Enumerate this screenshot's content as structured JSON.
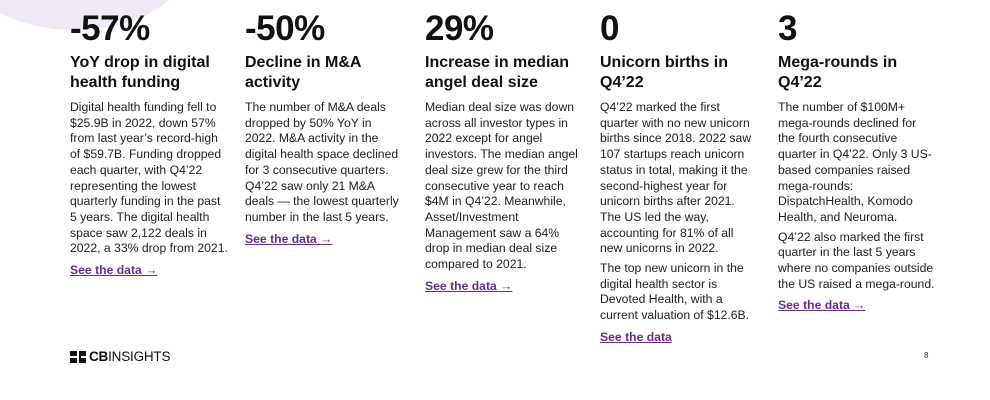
{
  "columns": [
    {
      "stat": "-57%",
      "heading": "YoY drop in digital health funding",
      "paragraphs": [
        "Digital health funding fell to $25.9B in 2022, down 57% from last year’s record-high of $59.7B. Funding dropped each quarter, with Q4’22 representing the lowest quarterly funding in the past 5 years. The digital health space saw 2,122 deals in 2022, a 33% drop from 2021."
      ],
      "link": "See the data →"
    },
    {
      "stat": "-50%",
      "heading": "Decline in M&A activity",
      "paragraphs": [
        "The number of M&A deals dropped by 50% YoY in 2022. M&A activity in the digital health space declined for 3 consecutive quarters. Q4’22 saw only 21 M&A deals — the lowest quarterly number in the last 5 years."
      ],
      "link": "See the data →"
    },
    {
      "stat": "29%",
      "heading": "Increase in median angel deal size",
      "paragraphs": [
        "Median deal size was down across all investor types in 2022 except for angel investors. The median angel deal size grew for the third consecutive year to reach $4M in Q4’22. Meanwhile, Asset/Investment Management saw a 64% drop in median deal size compared to 2021."
      ],
      "link": "See the data →"
    },
    {
      "stat": "0",
      "heading": "Unicorn births in Q4’22",
      "paragraphs": [
        "Q4’22 marked the first quarter with no new unicorn births since 2018. 2022 saw 107 startups reach unicorn status in total, making it the second-highest year for unicorn births after 2021. The US led the way, accounting for 81% of all new unicorns in 2022.",
        "The top new unicorn in the digital health sector is Devoted Health, with a current valuation of $12.6B."
      ],
      "link": "See the data"
    },
    {
      "stat": "3",
      "heading": "Mega-rounds in Q4’22",
      "paragraphs": [
        "The number of $100M+ mega-rounds declined for the fourth consecutive quarter in Q4’22. Only 3 US-based companies raised mega-rounds: DispatchHealth, Komodo Health, and Neuroma.",
        "Q4’22 also marked the first quarter in the last 5 years where no companies outside the US raised a mega-round."
      ],
      "link": "See the data →"
    }
  ],
  "footer": {
    "logo_bold": "CB",
    "logo_rest": "INSIGHTS",
    "page_number": "8"
  },
  "colors": {
    "link": "#6b2c91",
    "corner_shape": "#efe9f6"
  },
  "icons": {
    "logo": "cb-insights-logo-mark"
  }
}
